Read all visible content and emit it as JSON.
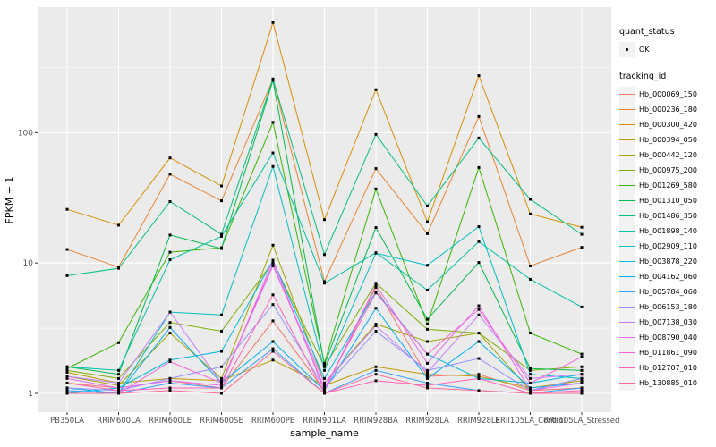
{
  "figure": {
    "background": "#FFFFFF",
    "panel_background": "#EBEBEB",
    "gridline_color": "#FFFFFF",
    "axis_text_color": "#4D4D4D",
    "tick_mark_color": "#333333",
    "point_color": "#000000"
  },
  "chart_data": {
    "type": "line",
    "xlabel": "sample_name",
    "ylabel": "FPKM + 1",
    "y_scale": "log10",
    "y_ticks": [
      "1",
      "10",
      "100"
    ],
    "y_tick_values": [
      1,
      10,
      100
    ],
    "y_minor_values": [
      3.162,
      31.62,
      316.2
    ],
    "ylim": [
      0.7,
      910
    ],
    "grid": "on",
    "legend_position": "right",
    "categories": [
      "PB350LA",
      "RRIM600LA",
      "RRIM600LE",
      "RRIM600SE",
      "RRIM600PE",
      "RRIM901LA",
      "RRIM928BA",
      "RRIM928LA",
      "RRIM928LE",
      "RRII105LA_Control",
      "RRII105LA_Stressed"
    ],
    "series": [
      {
        "name": "Hb_000069_150",
        "color": "#F8766D",
        "values": [
          1.2,
          1.1,
          1.25,
          1.1,
          3.6,
          1.05,
          6.5,
          1.35,
          1.4,
          1.05,
          1.1
        ]
      },
      {
        "name": "Hb_000236_180",
        "color": "#EA8331",
        "values": [
          12.7,
          9.3,
          48,
          30,
          258,
          7.2,
          53,
          16.8,
          133,
          9.5,
          13.2
        ]
      },
      {
        "name": "Hb_000300_420",
        "color": "#D89000",
        "values": [
          25.8,
          19.5,
          64,
          39,
          700,
          21.5,
          214,
          20.7,
          274,
          23.8,
          18.8
        ]
      },
      {
        "name": "Hb_000394_050",
        "color": "#C09B00",
        "values": [
          1.45,
          1.2,
          1.3,
          1.25,
          1.8,
          1.15,
          1.6,
          1.4,
          1.35,
          1.1,
          1.25
        ]
      },
      {
        "name": "Hb_000442_120",
        "color": "#A3A500",
        "values": [
          1.35,
          1.15,
          2.9,
          1.3,
          13.7,
          1.2,
          3.4,
          2.5,
          2.9,
          1.05,
          1.3
        ]
      },
      {
        "name": "Hb_000975_200",
        "color": "#7CAE00",
        "values": [
          1.5,
          1.3,
          3.5,
          3.0,
          10.2,
          1.6,
          7.0,
          3.1,
          2.9,
          1.5,
          1.6
        ]
      },
      {
        "name": "Hb_001269_580",
        "color": "#39B600",
        "values": [
          1.55,
          2.45,
          12.1,
          13.1,
          120,
          1.7,
          37,
          3.4,
          54,
          2.9,
          2.0
        ]
      },
      {
        "name": "Hb_001310_050",
        "color": "#00BB4E",
        "values": [
          1.6,
          1.4,
          16.4,
          12.9,
          252,
          1.65,
          18.7,
          3.7,
          10.1,
          1.55,
          1.5
        ]
      },
      {
        "name": "Hb_001486_350",
        "color": "#00BF7D",
        "values": [
          8.0,
          9.1,
          29.6,
          16.6,
          258,
          11.6,
          97,
          27.4,
          91,
          30.8,
          16.6
        ]
      },
      {
        "name": "Hb_001898_140",
        "color": "#00C1A3",
        "values": [
          1.6,
          1.5,
          10.6,
          16.0,
          70,
          7.0,
          12,
          6.2,
          14.6,
          7.5,
          4.6
        ]
      },
      {
        "name": "Hb_002909_110",
        "color": "#00BFC4",
        "values": [
          1.05,
          1.0,
          4.2,
          4.0,
          55,
          1.5,
          11.9,
          9.6,
          19,
          1.4,
          1.3
        ]
      },
      {
        "name": "Hb_003878_220",
        "color": "#00BAE0",
        "values": [
          1.0,
          1.1,
          1.8,
          2.1,
          10.5,
          1.3,
          6.0,
          2.0,
          1.3,
          1.2,
          1.4
        ]
      },
      {
        "name": "Hb_004162_060",
        "color": "#00B0F6",
        "values": [
          1.1,
          1.0,
          3.2,
          1.2,
          2.5,
          1.05,
          4.5,
          1.3,
          2.5,
          1.1,
          1.2
        ]
      },
      {
        "name": "Hb_005784_060",
        "color": "#35A2FF",
        "values": [
          1.05,
          1.0,
          1.2,
          1.1,
          2.2,
          1.0,
          1.5,
          1.2,
          1.05,
          1.0,
          1.1
        ]
      },
      {
        "name": "Hb_006153_180",
        "color": "#9590FF",
        "values": [
          1.1,
          1.05,
          1.3,
          1.6,
          4.8,
          1.1,
          3.0,
          1.5,
          1.85,
          1.05,
          1.3
        ]
      },
      {
        "name": "Hb_007138_030",
        "color": "#C77CFF",
        "values": [
          1.35,
          1.2,
          4.2,
          1.2,
          9.5,
          1.2,
          3.3,
          1.45,
          4.0,
          1.3,
          1.4
        ]
      },
      {
        "name": "Hb_008790_040",
        "color": "#E76BF3",
        "values": [
          1.3,
          1.1,
          1.25,
          1.15,
          10.5,
          1.05,
          6.8,
          1.7,
          4.7,
          1.05,
          1.2
        ]
      },
      {
        "name": "Hb_011861_090",
        "color": "#FA62DB",
        "values": [
          1.0,
          1.0,
          1.75,
          1.2,
          9.8,
          1.1,
          5.9,
          2.0,
          4.4,
          1.2,
          1.9
        ]
      },
      {
        "name": "Hb_012707_010",
        "color": "#FF62BC",
        "values": [
          1.2,
          1.05,
          1.1,
          1.1,
          5.7,
          1.0,
          1.25,
          1.15,
          1.3,
          1.0,
          1.05
        ]
      },
      {
        "name": "Hb_130885_010",
        "color": "#FF6A98",
        "values": [
          1.0,
          1.0,
          1.05,
          1.0,
          2.1,
          1.0,
          1.4,
          1.1,
          1.05,
          1.0,
          1.0
        ]
      }
    ],
    "legend_quant": {
      "title": "quant_status",
      "items": [
        {
          "label": "OK",
          "symbol": "black-point"
        }
      ]
    },
    "legend_tracking": {
      "title": "tracking_id"
    }
  }
}
